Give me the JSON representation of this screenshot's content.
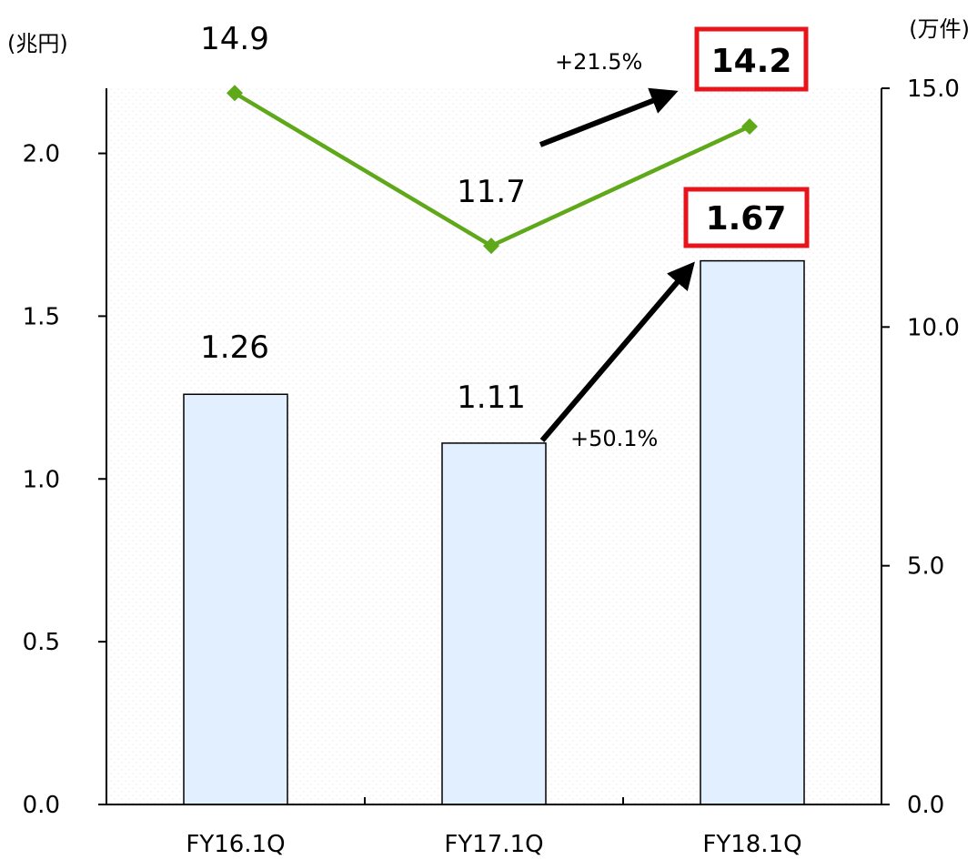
{
  "chart_data": {
    "type": "bar",
    "title": "",
    "categories": [
      "FY16.1Q",
      "FY17.1Q",
      "FY18.1Q"
    ],
    "series": [
      {
        "axis": "left",
        "type": "bar",
        "values": [
          1.26,
          1.11,
          1.67
        ],
        "value_labels": [
          "1.26",
          "1.11",
          "1.67"
        ],
        "color": "#e2efff"
      },
      {
        "axis": "right",
        "type": "line",
        "values": [
          14.9,
          11.7,
          14.2
        ],
        "value_labels": [
          "14.9",
          "11.7",
          "14.2"
        ],
        "color": "#5ea81a"
      }
    ],
    "left_axis": {
      "unit": "(兆円)",
      "ylim": [
        0,
        2.2
      ],
      "ticks": [
        "0.0",
        "0.5",
        "1.0",
        "1.5",
        "2.0"
      ]
    },
    "right_axis": {
      "unit": "(万件)",
      "ylim": [
        0,
        15.0
      ],
      "ticks": [
        "0.0",
        "5.0",
        "10.0",
        "15.0"
      ]
    },
    "annotations": {
      "bar_growth": "+50.1%",
      "line_growth": "+21.5%",
      "highlight_color": "#e8141b"
    },
    "grid": false,
    "legend": "none"
  }
}
